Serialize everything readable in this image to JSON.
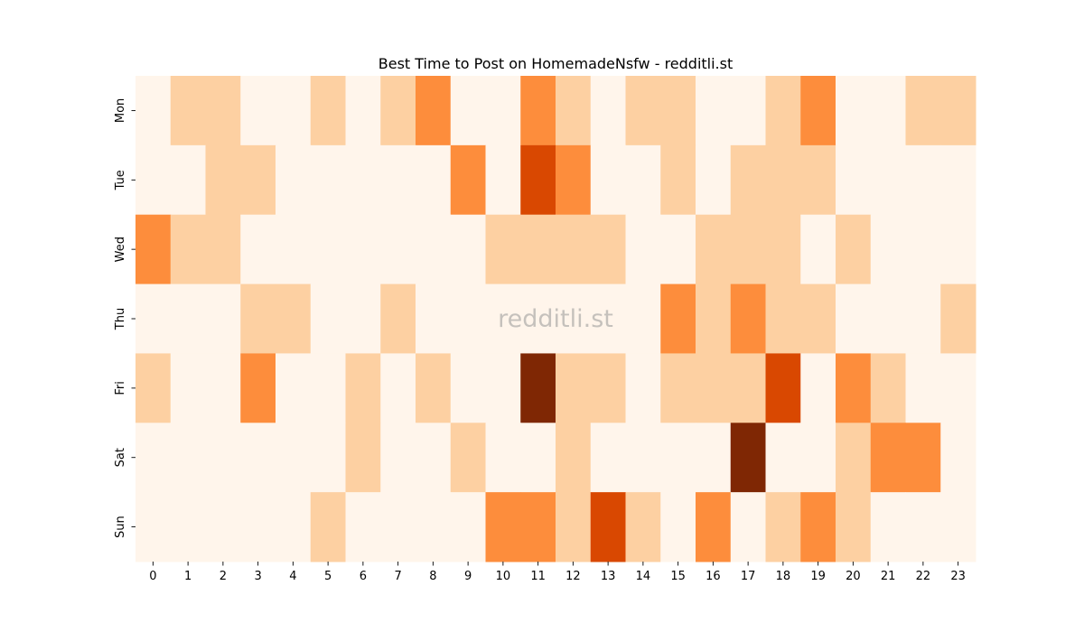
{
  "chart_data": {
    "type": "heatmap",
    "title": "Best Time to Post on HomemadeNsfw - redditli.st",
    "watermark": "redditli.st",
    "xlabel": "",
    "ylabel": "",
    "x_categories": [
      "0",
      "1",
      "2",
      "3",
      "4",
      "5",
      "6",
      "7",
      "8",
      "9",
      "10",
      "11",
      "12",
      "13",
      "14",
      "15",
      "16",
      "17",
      "18",
      "19",
      "20",
      "21",
      "22",
      "23"
    ],
    "y_categories": [
      "Mon",
      "Tue",
      "Wed",
      "Thu",
      "Fri",
      "Sat",
      "Sun"
    ],
    "colormap": "Oranges",
    "colormap_stops": [
      "#fff5eb",
      "#fdd0a2",
      "#fd8d3c",
      "#d94801",
      "#7f2704"
    ],
    "vmin": 0,
    "vmax": 4,
    "values": [
      [
        0,
        1,
        1,
        0,
        0,
        1,
        0,
        1,
        2,
        0,
        0,
        2,
        1,
        0,
        1,
        1,
        0,
        0,
        1,
        2,
        0,
        0,
        1,
        1
      ],
      [
        0,
        0,
        1,
        1,
        0,
        0,
        0,
        0,
        0,
        2,
        0,
        3,
        2,
        0,
        0,
        1,
        0,
        1,
        1,
        1,
        0,
        0,
        0,
        0
      ],
      [
        2,
        1,
        1,
        0,
        0,
        0,
        0,
        0,
        0,
        0,
        1,
        1,
        1,
        1,
        0,
        0,
        1,
        1,
        1,
        0,
        1,
        0,
        0,
        0
      ],
      [
        0,
        0,
        0,
        1,
        1,
        0,
        0,
        1,
        0,
        0,
        0,
        0,
        0,
        0,
        0,
        2,
        1,
        2,
        1,
        1,
        0,
        0,
        0,
        1
      ],
      [
        1,
        0,
        0,
        2,
        0,
        0,
        1,
        0,
        1,
        0,
        0,
        4,
        1,
        1,
        0,
        1,
        1,
        1,
        3,
        0,
        2,
        1,
        0,
        0
      ],
      [
        0,
        0,
        0,
        0,
        0,
        0,
        1,
        0,
        0,
        1,
        0,
        0,
        1,
        0,
        0,
        0,
        0,
        4,
        0,
        0,
        1,
        2,
        2,
        0
      ],
      [
        0,
        0,
        0,
        0,
        0,
        1,
        0,
        0,
        0,
        0,
        2,
        2,
        1,
        3,
        1,
        0,
        2,
        0,
        1,
        2,
        1,
        0,
        0,
        0
      ]
    ]
  }
}
